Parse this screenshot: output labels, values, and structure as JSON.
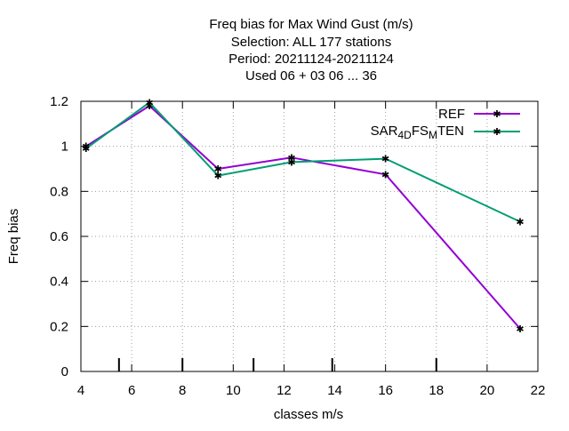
{
  "chart_data": {
    "type": "line",
    "title_lines": [
      "Freq bias  for Max Wind Gust (m/s)",
      "Selection: ALL    177 stations",
      "Period: 20211124-20211124",
      "Used  06 + 03 06 ... 36"
    ],
    "xlabel": "classes m/s",
    "ylabel": "Freq bias",
    "xlim": [
      4,
      22
    ],
    "ylim": [
      0,
      1.2
    ],
    "xticks": [
      4,
      6,
      8,
      10,
      12,
      14,
      16,
      18,
      20,
      22
    ],
    "yticks": [
      0,
      0.2,
      0.4,
      0.6,
      0.8,
      1,
      1.2
    ],
    "ytick_labels": [
      "0",
      "0.2",
      "0.4",
      "0.6",
      "0.8",
      "1",
      "1.2"
    ],
    "grid": true,
    "legend_position": "top-right",
    "class_boundaries": [
      5.5,
      8,
      10.8,
      13.9,
      18
    ],
    "series": [
      {
        "name": "REF",
        "color": "#9400d3",
        "x": [
          4.2,
          6.7,
          9.4,
          12.3,
          16.0,
          21.3
        ],
        "y": [
          1.0,
          1.18,
          0.9,
          0.95,
          0.875,
          0.19
        ]
      },
      {
        "name": "SAR_4DFS_MTEN",
        "color": "#009e73",
        "x": [
          4.2,
          6.7,
          9.4,
          12.3,
          16.0,
          21.3
        ],
        "y": [
          0.99,
          1.195,
          0.87,
          0.93,
          0.945,
          0.665
        ]
      }
    ]
  }
}
